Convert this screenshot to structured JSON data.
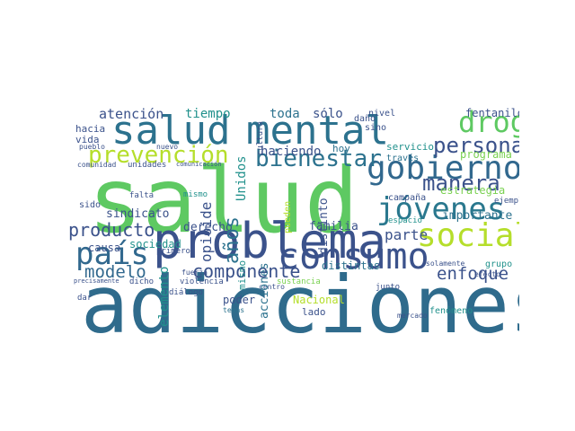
{
  "word_cloud": {
    "words": [
      {
        "text": "adicciones",
        "color": "#2f6b8c",
        "size": "xl",
        "orient": "h"
      },
      {
        "text": "salud",
        "color": "#5ec962",
        "size": "xl",
        "orient": "h"
      },
      {
        "text": "problema",
        "color": "#3b528b",
        "size": "xl",
        "orient": "h"
      },
      {
        "text": "mental",
        "color": "#2c728e",
        "size": "l",
        "orient": "h"
      },
      {
        "text": "salud",
        "color": "#2c728e",
        "size": "l",
        "orient": "h"
      },
      {
        "text": "consumo",
        "color": "#3b528b",
        "size": "l",
        "orient": "h"
      },
      {
        "text": "gobierno",
        "color": "#31688e",
        "size": "l",
        "orient": "h"
      },
      {
        "text": "jóvenes",
        "color": "#2a788e",
        "size": "l",
        "orient": "h"
      },
      {
        "text": "social",
        "color": "#b5de2b",
        "size": "l",
        "orient": "h"
      },
      {
        "text": "país",
        "color": "#31688e",
        "size": "l",
        "orient": "h"
      },
      {
        "text": "droga",
        "color": "#5ec962",
        "size": "l",
        "orient": "h"
      },
      {
        "text": "prevención",
        "color": "#b5de2b",
        "size": "m",
        "orient": "h"
      },
      {
        "text": "bienestar",
        "color": "#2c728e",
        "size": "m",
        "orient": "h"
      },
      {
        "text": "persona",
        "color": "#3b528b",
        "size": "m",
        "orient": "h"
      },
      {
        "text": "manera",
        "color": "#3b528b",
        "size": "m",
        "orient": "h"
      },
      {
        "text": "componente",
        "color": "#3b528b",
        "size": "m",
        "orient": "h"
      },
      {
        "text": "producto",
        "color": "#3b528b",
        "size": "m",
        "orient": "h"
      },
      {
        "text": "modelo",
        "color": "#31688e",
        "size": "m",
        "orient": "h"
      },
      {
        "text": "enfoque",
        "color": "#3b528b",
        "size": "m",
        "orient": "h"
      },
      {
        "text": "atención",
        "color": "#3b528b",
        "size": "s",
        "orient": "h"
      },
      {
        "text": "parte",
        "color": "#3b528b",
        "size": "s",
        "orient": "h"
      },
      {
        "text": "toda",
        "color": "#2c728e",
        "size": "s",
        "orient": "h"
      },
      {
        "text": "sólo",
        "color": "#3b528b",
        "size": "s",
        "orient": "h"
      },
      {
        "text": "tiempo",
        "color": "#21918c",
        "size": "s",
        "orient": "h"
      },
      {
        "text": "haciendo",
        "color": "#3b528b",
        "size": "s",
        "orient": "h"
      },
      {
        "text": "importante",
        "color": "#2c728e",
        "size": "s",
        "orient": "h"
      },
      {
        "text": "estrategia",
        "color": "#7ad151",
        "size": "s",
        "orient": "h"
      },
      {
        "text": "fentanilo",
        "color": "#3b528b",
        "size": "s",
        "orient": "h"
      },
      {
        "text": "sindicato",
        "color": "#3b528b",
        "size": "s",
        "orient": "h"
      },
      {
        "text": "derecho",
        "color": "#3b528b",
        "size": "s",
        "orient": "h"
      },
      {
        "text": "familia",
        "color": "#3b528b",
        "size": "s",
        "orient": "h"
      },
      {
        "text": "sociedad",
        "color": "#21918c",
        "size": "s",
        "orient": "h"
      },
      {
        "text": "distintas",
        "color": "#2c728e",
        "size": "s",
        "orient": "h"
      },
      {
        "text": "programa",
        "color": "#7ad151",
        "size": "s",
        "orient": "h"
      },
      {
        "text": "servicio",
        "color": "#21918c",
        "size": "s",
        "orient": "h"
      },
      {
        "text": "causa",
        "color": "#3b528b",
        "size": "s",
        "orient": "h"
      },
      {
        "text": "lado",
        "color": "#3b528b",
        "size": "s",
        "orient": "h"
      },
      {
        "text": "poder",
        "color": "#3b528b",
        "size": "s",
        "orient": "h"
      },
      {
        "text": "Nacional",
        "color": "#b5de2b",
        "size": "s",
        "orient": "h"
      },
      {
        "text": "vida",
        "color": "#3b528b",
        "size": "s",
        "orient": "h"
      },
      {
        "text": "hacia",
        "color": "#3b528b",
        "size": "s",
        "orient": "h"
      },
      {
        "text": "hoy",
        "color": "#2c728e",
        "size": "s",
        "orient": "h"
      },
      {
        "text": "nivel",
        "color": "#3b528b",
        "size": "s",
        "orient": "h"
      },
      {
        "text": "sino",
        "color": "#3b528b",
        "size": "s",
        "orient": "h"
      },
      {
        "text": "daño",
        "color": "#3b528b",
        "size": "s",
        "orient": "h"
      },
      {
        "text": "través",
        "color": "#2c728e",
        "size": "s",
        "orient": "h"
      },
      {
        "text": "campaña",
        "color": "#3b528b",
        "size": "s",
        "orient": "h"
      },
      {
        "text": "espacio",
        "color": "#21918c",
        "size": "s",
        "orient": "h"
      },
      {
        "text": "grupo",
        "color": "#21918c",
        "size": "s",
        "orient": "h"
      },
      {
        "text": "junto",
        "color": "#3b528b",
        "size": "s",
        "orient": "h"
      },
      {
        "text": "fenómeno",
        "color": "#21918c",
        "size": "s",
        "orient": "h"
      },
      {
        "text": "mercado",
        "color": "#3b528b",
        "size": "s",
        "orient": "h"
      },
      {
        "text": "sustancia",
        "color": "#7ad151",
        "size": "s",
        "orient": "h"
      },
      {
        "text": "precisamente",
        "color": "#3b528b",
        "size": "xs",
        "orient": "h"
      },
      {
        "text": "violencia",
        "color": "#3b528b",
        "size": "xs",
        "orient": "h"
      },
      {
        "text": "diálogo",
        "color": "#3b528b",
        "size": "xs",
        "orient": "h"
      },
      {
        "text": "temas",
        "color": "#2c728e",
        "size": "xs",
        "orient": "h"
      },
      {
        "text": "centro",
        "color": "#3b528b",
        "size": "xs",
        "orient": "h"
      },
      {
        "text": "fuerza",
        "color": "#3b528b",
        "size": "xs",
        "orient": "h"
      },
      {
        "text": "primero",
        "color": "#3b528b",
        "size": "xs",
        "orient": "h"
      },
      {
        "text": "dicho",
        "color": "#3b528b",
        "size": "xs",
        "orient": "h"
      },
      {
        "text": "dar",
        "color": "#3b528b",
        "size": "xs",
        "orient": "h"
      },
      {
        "text": "sido",
        "color": "#3b528b",
        "size": "xs",
        "orient": "h"
      },
      {
        "text": "falta",
        "color": "#3b528b",
        "size": "xs",
        "orient": "h"
      },
      {
        "text": "unidades",
        "color": "#3b528b",
        "size": "xs",
        "orient": "h"
      },
      {
        "text": "comunidad",
        "color": "#3b528b",
        "size": "xs",
        "orient": "h"
      },
      {
        "text": "comunicación",
        "color": "#3b528b",
        "size": "xs",
        "orient": "h"
      },
      {
        "text": "pueblo",
        "color": "#3b528b",
        "size": "xs",
        "orient": "h"
      },
      {
        "text": "nuevo",
        "color": "#3b528b",
        "size": "xs",
        "orient": "h"
      },
      {
        "text": "solamente",
        "color": "#3b528b",
        "size": "xs",
        "orient": "h"
      },
      {
        "text": "efecto",
        "color": "#3b528b",
        "size": "xs",
        "orient": "h"
      },
      {
        "text": "ejemplo",
        "color": "#3b528b",
        "size": "xs",
        "orient": "h"
      },
      {
        "text": "mismo",
        "color": "#21918c",
        "size": "xs",
        "orient": "h"
      },
      {
        "text": "años",
        "color": "#2c728e",
        "size": "m",
        "orient": "v"
      },
      {
        "text": "opioide",
        "color": "#3b528b",
        "size": "s",
        "orient": "v"
      },
      {
        "text": "elemento",
        "color": "#21918c",
        "size": "s",
        "orient": "v"
      },
      {
        "text": "Unidos",
        "color": "#21918c",
        "size": "s",
        "orient": "v"
      },
      {
        "text": "acciones",
        "color": "#2c728e",
        "size": "s",
        "orient": "v"
      },
      {
        "text": "distinto",
        "color": "#3b528b",
        "size": "s",
        "orient": "v"
      },
      {
        "text": "mismo",
        "color": "#21918c",
        "size": "s",
        "orient": "v"
      },
      {
        "text": "pueden",
        "color": "#b5de2b",
        "size": "xs",
        "orient": "v"
      },
      {
        "text": "cultura",
        "color": "#3b528b",
        "size": "xs",
        "orient": "v"
      }
    ]
  }
}
